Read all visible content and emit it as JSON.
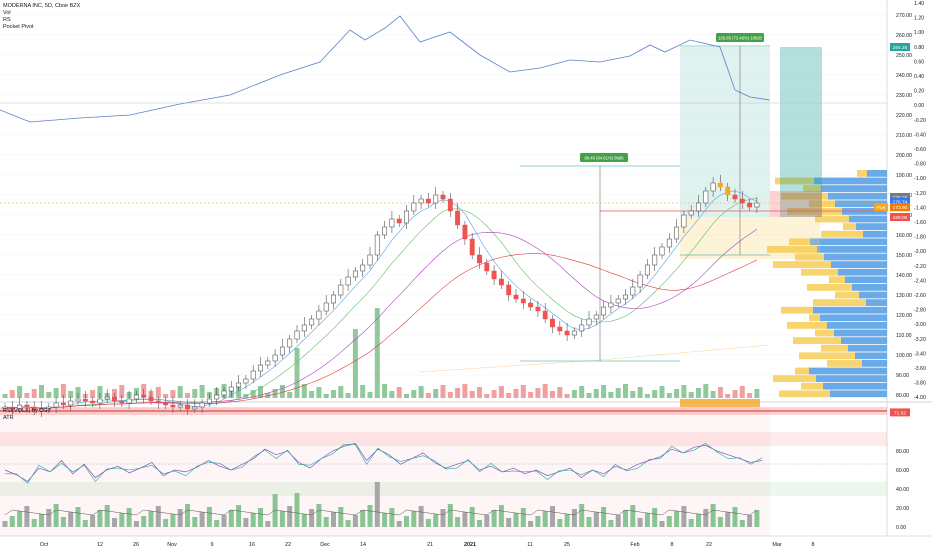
{
  "header": {
    "symbol": "MODERNA INC, 5D, Cboe BZX",
    "indicators": [
      "Vol",
      "RS",
      "Pocket Pivot"
    ]
  },
  "lower_pane": {
    "indicators": [
      "RSI(VOLX) by DGT",
      "ATR"
    ]
  },
  "colors": {
    "up": "#26a69a",
    "down": "#ef5350",
    "vol_up": "#7cc08a",
    "vol_down": "#ef8e8e",
    "rs_line": "#5b7fcf",
    "vp_blue": "#5aa1e6",
    "vp_yellow": "#f6cf5e"
  },
  "chart_data": [
    {
      "type": "candlestick",
      "pane": "main",
      "price_axis": {
        "ticks": [
          "270.00",
          "260.00",
          "250.00",
          "240.00",
          "230.00",
          "220.00",
          "210.00",
          "200.00",
          "190.00",
          "180.00",
          "170.00",
          "160.00",
          "150.00",
          "140.00",
          "130.00",
          "120.00",
          "110.00",
          "100.00",
          "90.00",
          "80.00"
        ],
        "tags": [
          {
            "label": "254.25",
            "color": "#26a69a"
          },
          {
            "label": "179.25",
            "color": "#787b86"
          },
          {
            "label": "176.74",
            "color": "#3179f5"
          },
          {
            "label": "Pos",
            "color": "#f5a623"
          },
          {
            "label": "173.90",
            "color": "#f57c00"
          },
          {
            "label": "169.00",
            "color": "#ef5350"
          },
          {
            "label": "71.32",
            "color": "#ef5350"
          }
        ]
      },
      "rs_axis": {
        "ticks": [
          "1.40",
          "1.20",
          "1.00",
          "0.80",
          "0.60",
          "0.40",
          "0.20",
          "0.00",
          "-0.20",
          "-0.40",
          "-0.60",
          "-0.80",
          "-1.00",
          "-1.20",
          "-1.40",
          "-1.60",
          "-1.80",
          "-2.00",
          "-2.20",
          "-2.40",
          "-2.60",
          "-2.80",
          "-3.00",
          "-3.20",
          "-3.40",
          "-3.60",
          "-3.80",
          "-4.00"
        ]
      },
      "time_axis": [
        "Oct",
        "12",
        "26",
        "Nov",
        "9",
        "16",
        "22",
        "Dec",
        "14",
        "21",
        "2021",
        "11",
        "25",
        "Feb",
        "8",
        "22",
        "Mar",
        "8"
      ],
      "annotations": [
        {
          "label": "86.46 (84.61%) 86d6"
        },
        {
          "label": "106.85 (73.48%) 106d3"
        }
      ]
    },
    {
      "type": "line",
      "pane": "lower",
      "yaxis": {
        "ticks": [
          "80.00",
          "60.00",
          "40.00",
          "20.00",
          "0.00"
        ]
      }
    }
  ]
}
